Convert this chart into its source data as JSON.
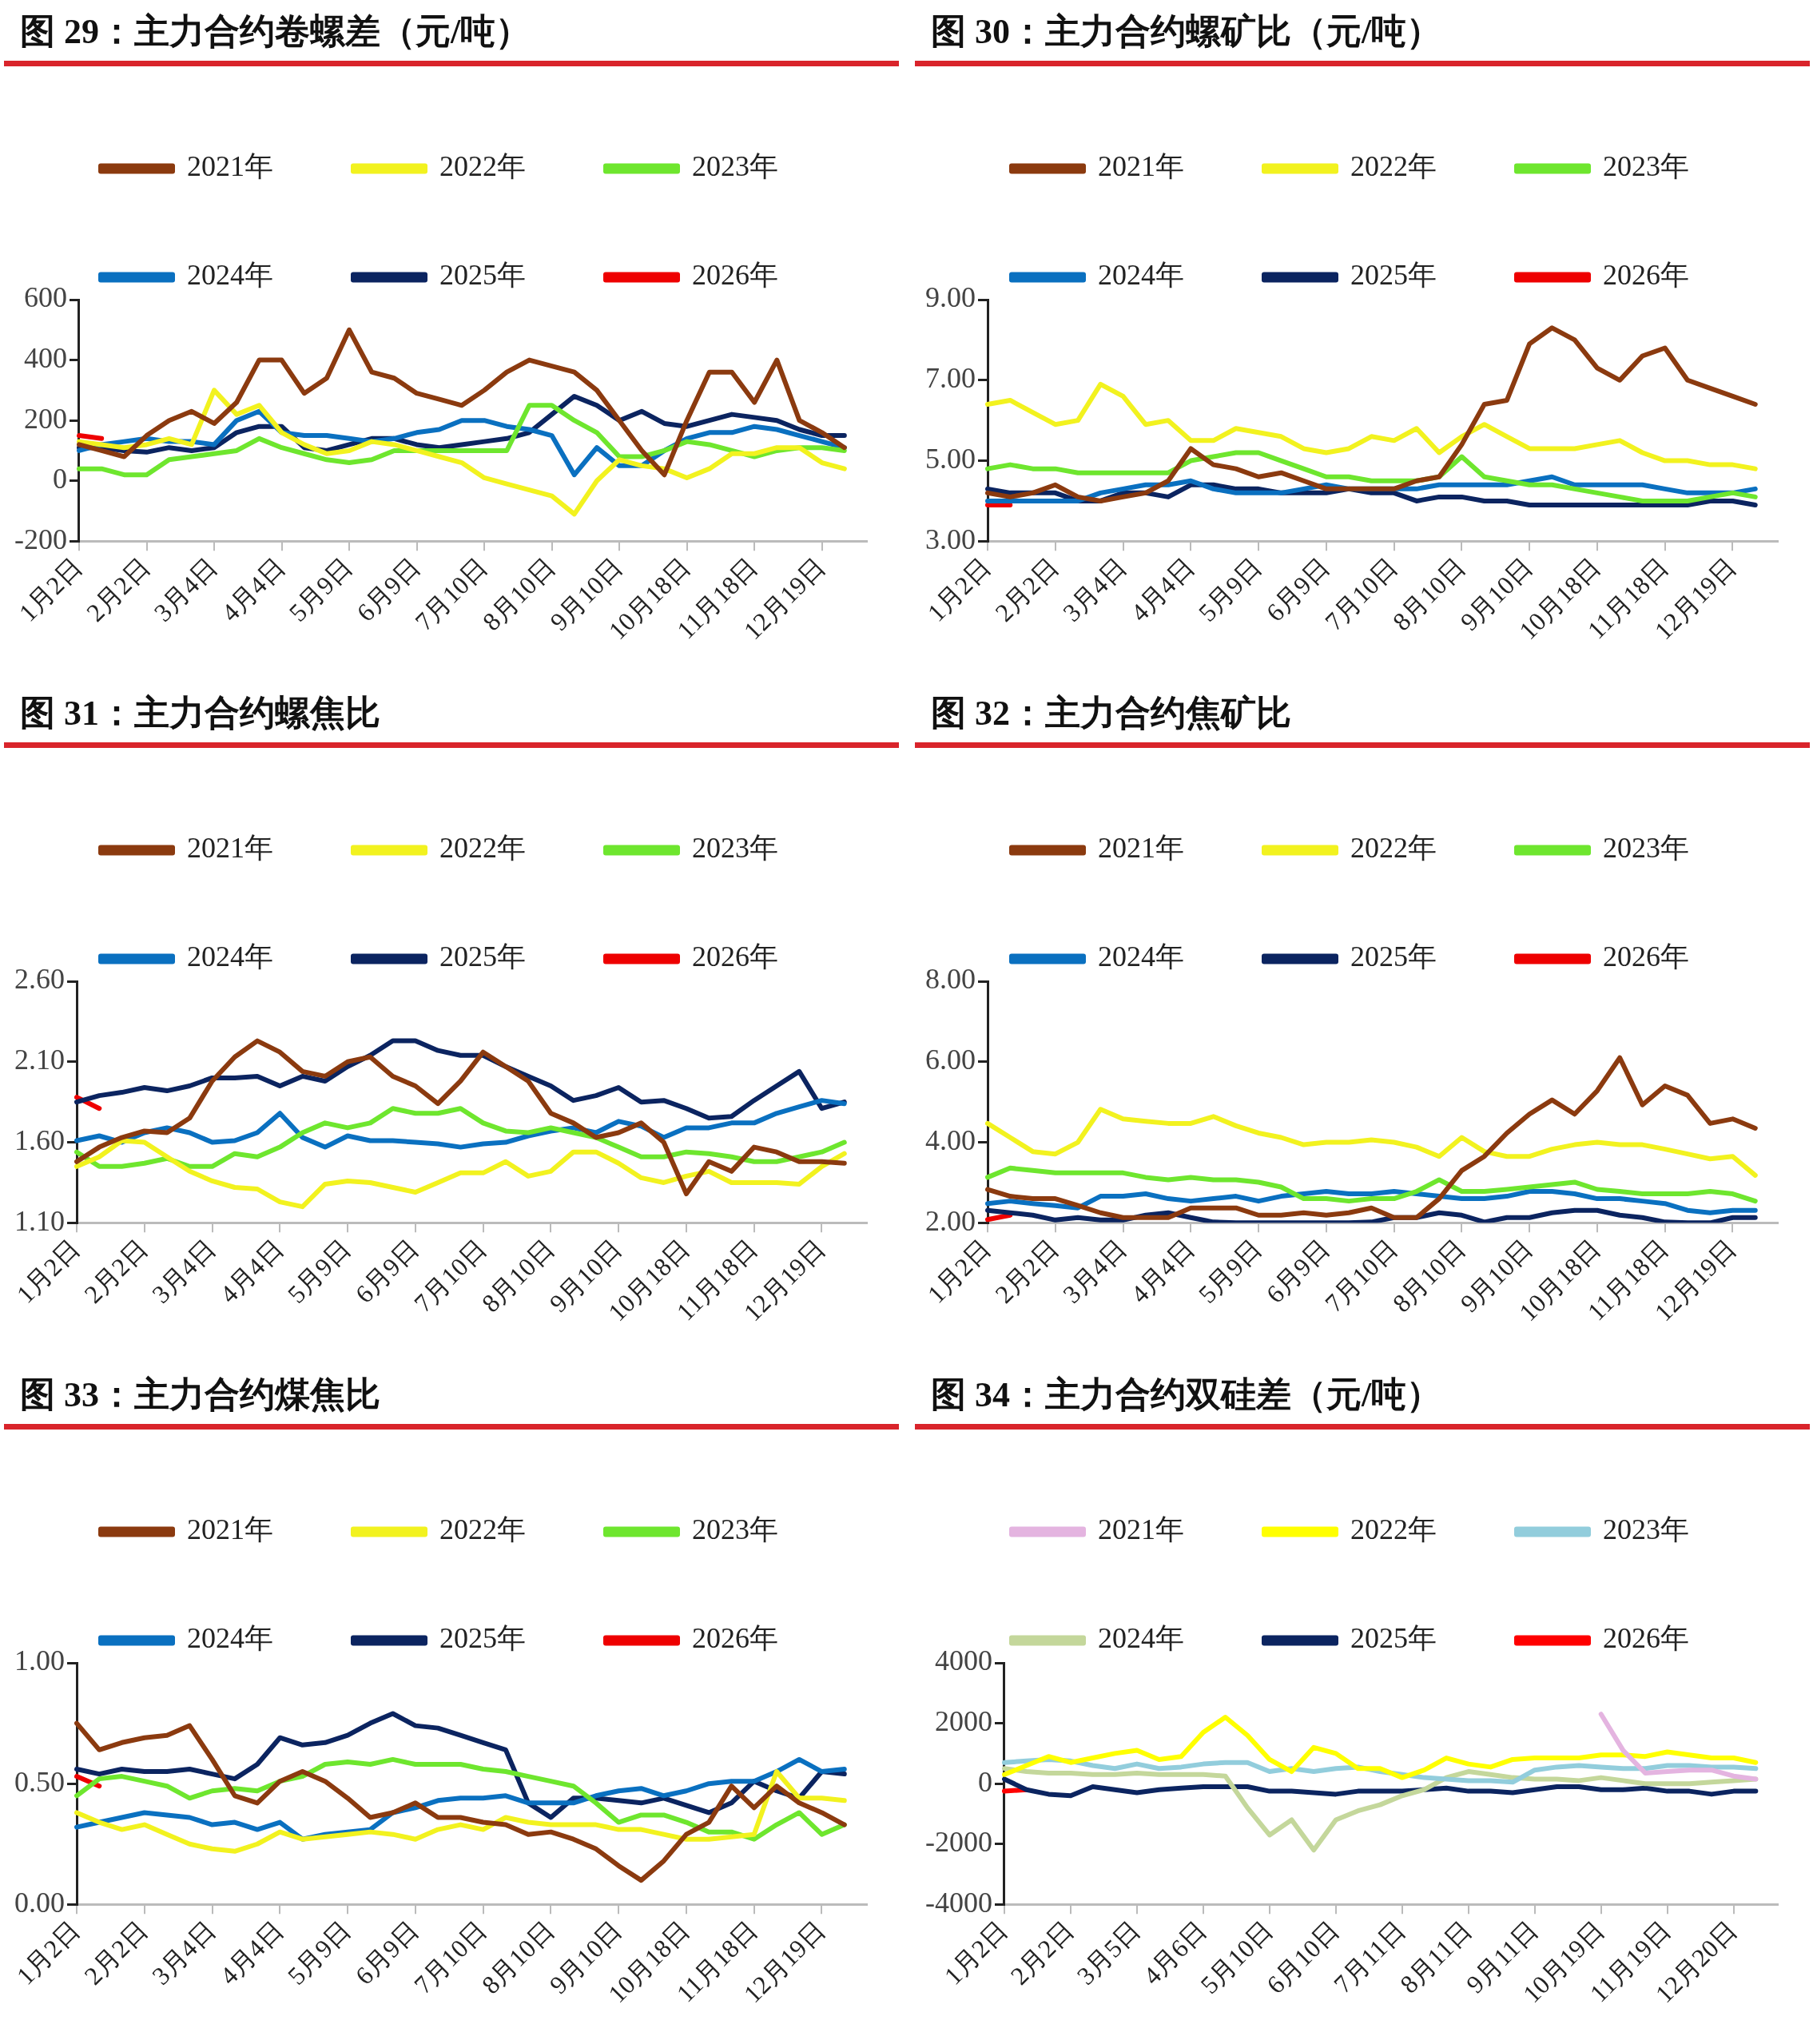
{
  "chart_data": [
    {
      "type": "line",
      "title": "图 29：主力合约卷螺差（元/吨）",
      "categories": [
        "1月2日",
        null,
        null,
        "2月2日",
        null,
        null,
        "3月4日",
        null,
        null,
        "4月4日",
        null,
        null,
        "5月9日",
        null,
        null,
        "6月9日",
        null,
        null,
        "7月10日",
        null,
        null,
        "8月10日",
        null,
        null,
        "9月10日",
        null,
        null,
        "10月18日",
        null,
        null,
        "11月18日",
        null,
        null,
        "12月19日",
        null,
        null
      ],
      "series": [
        {
          "name": "2021年",
          "color": "#8b3a0f",
          "values": [
            120,
            100,
            80,
            150,
            200,
            230,
            190,
            260,
            400,
            400,
            290,
            340,
            500,
            360,
            340,
            290,
            270,
            250,
            300,
            360,
            400,
            380,
            360,
            300,
            200,
            100,
            20,
            200,
            360,
            360,
            260,
            400,
            200,
            160,
            110,
            null
          ]
        },
        {
          "name": "2022年",
          "color": "#f2f21f",
          "values": [
            130,
            120,
            110,
            120,
            140,
            120,
            300,
            220,
            250,
            160,
            120,
            90,
            100,
            130,
            120,
            100,
            80,
            60,
            10,
            -10,
            -30,
            -50,
            -110,
            0,
            70,
            50,
            40,
            10,
            40,
            90,
            90,
            110,
            110,
            60,
            40,
            null
          ]
        },
        {
          "name": "2023年",
          "color": "#6ee62e",
          "values": [
            40,
            40,
            20,
            20,
            70,
            80,
            90,
            100,
            140,
            110,
            90,
            70,
            60,
            70,
            100,
            100,
            100,
            100,
            100,
            100,
            250,
            250,
            200,
            160,
            80,
            80,
            100,
            130,
            120,
            100,
            80,
            100,
            110,
            110,
            100,
            null
          ]
        },
        {
          "name": "2024年",
          "color": "#0a70c0",
          "values": [
            100,
            120,
            130,
            140,
            130,
            130,
            120,
            200,
            230,
            160,
            150,
            150,
            140,
            130,
            140,
            160,
            170,
            200,
            200,
            180,
            170,
            150,
            20,
            110,
            50,
            50,
            100,
            140,
            160,
            160,
            180,
            170,
            150,
            130,
            110,
            null
          ]
        },
        {
          "name": "2025年",
          "color": "#0b2460",
          "values": [
            110,
            110,
            100,
            95,
            110,
            100,
            110,
            160,
            180,
            180,
            110,
            100,
            120,
            140,
            140,
            120,
            110,
            120,
            130,
            140,
            160,
            220,
            280,
            250,
            200,
            230,
            190,
            180,
            200,
            220,
            210,
            200,
            170,
            150,
            150,
            null
          ]
        },
        {
          "name": "2026年",
          "color": "#ee0000",
          "values": [
            150,
            140,
            null,
            null,
            null,
            null,
            null,
            null,
            null,
            null,
            null,
            null,
            null,
            null,
            null,
            null,
            null,
            null,
            null,
            null,
            null,
            null,
            null,
            null,
            null,
            null,
            null,
            null,
            null,
            null,
            null,
            null,
            null,
            null,
            null,
            null
          ]
        }
      ],
      "ylim": [
        -200,
        600
      ],
      "yticks": [
        -200,
        0,
        200,
        400,
        600
      ],
      "legend": "top"
    },
    {
      "type": "line",
      "title": "图 30：主力合约螺矿比（元/吨）",
      "categories": [
        "1月2日",
        null,
        null,
        "2月2日",
        null,
        null,
        "3月4日",
        null,
        null,
        "4月4日",
        null,
        null,
        "5月9日",
        null,
        null,
        "6月9日",
        null,
        null,
        "7月10日",
        null,
        null,
        "8月10日",
        null,
        null,
        "9月10日",
        null,
        null,
        "10月18日",
        null,
        null,
        "11月18日",
        null,
        null,
        "12月19日",
        null,
        null
      ],
      "series": [
        {
          "name": "2021年",
          "color": "#8b3a0f",
          "values": [
            4.2,
            4.1,
            4.2,
            4.4,
            4.1,
            4.0,
            4.1,
            4.2,
            4.5,
            5.3,
            4.9,
            4.8,
            4.6,
            4.7,
            4.5,
            4.3,
            4.3,
            4.3,
            4.3,
            4.5,
            4.6,
            5.4,
            6.4,
            6.5,
            7.9,
            8.3,
            8.0,
            7.3,
            7.0,
            7.6,
            7.8,
            7.0,
            6.8,
            6.6,
            6.4,
            null
          ]
        },
        {
          "name": "2022年",
          "color": "#f2f21f",
          "values": [
            6.4,
            6.5,
            6.2,
            5.9,
            6.0,
            6.9,
            6.6,
            5.9,
            6.0,
            5.5,
            5.5,
            5.8,
            5.7,
            5.6,
            5.3,
            5.2,
            5.3,
            5.6,
            5.5,
            5.8,
            5.2,
            5.6,
            5.9,
            5.6,
            5.3,
            5.3,
            5.3,
            5.4,
            5.5,
            5.2,
            5.0,
            5.0,
            4.9,
            4.9,
            4.8,
            null
          ]
        },
        {
          "name": "2023年",
          "color": "#6ee62e",
          "values": [
            4.8,
            4.9,
            4.8,
            4.8,
            4.7,
            4.7,
            4.7,
            4.7,
            4.7,
            5.0,
            5.1,
            5.2,
            5.2,
            5.0,
            4.8,
            4.6,
            4.6,
            4.5,
            4.5,
            4.5,
            4.6,
            5.1,
            4.6,
            4.5,
            4.4,
            4.4,
            4.3,
            4.2,
            4.1,
            4.0,
            4.0,
            4.0,
            4.1,
            4.2,
            4.1,
            null
          ]
        },
        {
          "name": "2024年",
          "color": "#0a70c0",
          "values": [
            4.0,
            4.0,
            4.0,
            4.0,
            4.0,
            4.2,
            4.3,
            4.4,
            4.4,
            4.5,
            4.3,
            4.2,
            4.2,
            4.2,
            4.3,
            4.4,
            4.3,
            4.3,
            4.3,
            4.3,
            4.4,
            4.4,
            4.4,
            4.4,
            4.5,
            4.6,
            4.4,
            4.4,
            4.4,
            4.4,
            4.3,
            4.2,
            4.2,
            4.2,
            4.3,
            null
          ]
        },
        {
          "name": "2025年",
          "color": "#0b2460",
          "values": [
            4.3,
            4.2,
            4.2,
            4.2,
            4.0,
            4.0,
            4.2,
            4.2,
            4.1,
            4.4,
            4.4,
            4.3,
            4.3,
            4.2,
            4.2,
            4.2,
            4.3,
            4.2,
            4.2,
            4.0,
            4.1,
            4.1,
            4.0,
            4.0,
            3.9,
            3.9,
            3.9,
            3.9,
            3.9,
            3.9,
            3.9,
            3.9,
            4.0,
            4.0,
            3.9,
            null
          ]
        },
        {
          "name": "2026年",
          "color": "#ee0000",
          "values": [
            3.9,
            3.9,
            null,
            null,
            null,
            null,
            null,
            null,
            null,
            null,
            null,
            null,
            null,
            null,
            null,
            null,
            null,
            null,
            null,
            null,
            null,
            null,
            null,
            null,
            null,
            null,
            null,
            null,
            null,
            null,
            null,
            null,
            null,
            null,
            null,
            null
          ]
        }
      ],
      "ylim": [
        3,
        9
      ],
      "yticks": [
        {
          "value": 3,
          "label": "3.00"
        },
        {
          "value": 5,
          "label": "5.00"
        },
        {
          "value": 7,
          "label": "7.00"
        },
        {
          "value": 9,
          "label": "9.00"
        }
      ],
      "legend": "top"
    },
    {
      "type": "line",
      "title": "图 31：主力合约螺焦比",
      "categories": [
        "1月2日",
        null,
        null,
        "2月2日",
        null,
        null,
        "3月4日",
        null,
        null,
        "4月4日",
        null,
        null,
        "5月9日",
        null,
        null,
        "6月9日",
        null,
        null,
        "7月10日",
        null,
        null,
        "8月10日",
        null,
        null,
        "9月10日",
        null,
        null,
        "10月18日",
        null,
        null,
        "11月18日",
        null,
        null,
        "12月19日",
        null,
        null
      ],
      "series": [
        {
          "name": "2021年",
          "color": "#8b3a0f",
          "values": [
            1.48,
            1.57,
            1.63,
            1.67,
            1.66,
            1.75,
            1.98,
            2.13,
            2.23,
            2.16,
            2.04,
            2.01,
            2.1,
            2.13,
            2.01,
            1.95,
            1.84,
            1.98,
            2.16,
            2.07,
            1.98,
            1.78,
            1.72,
            1.63,
            1.66,
            1.72,
            1.6,
            1.28,
            1.48,
            1.42,
            1.57,
            1.54,
            1.48,
            1.48,
            1.47,
            null
          ]
        },
        {
          "name": "2022年",
          "color": "#f2f21f",
          "values": [
            1.45,
            1.51,
            1.61,
            1.6,
            1.51,
            1.42,
            1.36,
            1.32,
            1.31,
            1.23,
            1.2,
            1.34,
            1.36,
            1.35,
            1.32,
            1.29,
            1.35,
            1.41,
            1.41,
            1.48,
            1.39,
            1.42,
            1.54,
            1.54,
            1.47,
            1.38,
            1.35,
            1.39,
            1.42,
            1.35,
            1.35,
            1.35,
            1.34,
            1.45,
            1.53,
            null
          ]
        },
        {
          "name": "2023年",
          "color": "#6ee62e",
          "values": [
            1.54,
            1.45,
            1.45,
            1.47,
            1.5,
            1.45,
            1.45,
            1.53,
            1.51,
            1.57,
            1.66,
            1.72,
            1.69,
            1.72,
            1.81,
            1.78,
            1.78,
            1.81,
            1.72,
            1.67,
            1.66,
            1.69,
            1.66,
            1.63,
            1.57,
            1.51,
            1.51,
            1.54,
            1.53,
            1.51,
            1.48,
            1.48,
            1.51,
            1.54,
            1.6,
            null
          ]
        },
        {
          "name": "2024年",
          "color": "#0a70c0",
          "values": [
            1.61,
            1.64,
            1.6,
            1.66,
            1.69,
            1.66,
            1.6,
            1.61,
            1.66,
            1.78,
            1.63,
            1.57,
            1.64,
            1.61,
            1.61,
            1.6,
            1.59,
            1.57,
            1.59,
            1.6,
            1.64,
            1.67,
            1.69,
            1.66,
            1.73,
            1.7,
            1.63,
            1.69,
            1.69,
            1.72,
            1.72,
            1.78,
            1.82,
            1.86,
            1.84,
            null
          ]
        },
        {
          "name": "2025年",
          "color": "#0b2460",
          "values": [
            1.85,
            1.89,
            1.91,
            1.94,
            1.92,
            1.95,
            2.0,
            2.0,
            2.01,
            1.95,
            2.01,
            1.98,
            2.07,
            2.14,
            2.23,
            2.23,
            2.17,
            2.14,
            2.14,
            2.07,
            2.01,
            1.95,
            1.86,
            1.89,
            1.94,
            1.85,
            1.86,
            1.81,
            1.75,
            1.76,
            1.86,
            1.95,
            2.04,
            1.81,
            1.85,
            null
          ]
        },
        {
          "name": "2026年",
          "color": "#ee0000",
          "values": [
            1.88,
            1.81,
            null,
            null,
            null,
            null,
            null,
            null,
            null,
            null,
            null,
            null,
            null,
            null,
            null,
            null,
            null,
            null,
            null,
            null,
            null,
            null,
            null,
            null,
            null,
            null,
            null,
            null,
            null,
            null,
            null,
            null,
            null,
            null,
            null,
            null
          ]
        }
      ],
      "ylim": [
        1.1,
        2.6
      ],
      "yticks": [
        {
          "value": 1.1,
          "label": "1.10"
        },
        {
          "value": 1.6,
          "label": "1.60"
        },
        {
          "value": 2.1,
          "label": "2.10"
        },
        {
          "value": 2.6,
          "label": "2.60"
        }
      ],
      "legend": "top"
    },
    {
      "type": "line",
      "title": "图 32：主力合约焦矿比",
      "categories": [
        "1月2日",
        null,
        null,
        "2月2日",
        null,
        null,
        "3月4日",
        null,
        null,
        "4月4日",
        null,
        null,
        "5月9日",
        null,
        null,
        "6月9日",
        null,
        null,
        "7月10日",
        null,
        null,
        "8月10日",
        null,
        null,
        "9月10日",
        null,
        null,
        "10月18日",
        null,
        null,
        "11月18日",
        null,
        null,
        "12月19日",
        null,
        null
      ],
      "series": [
        {
          "name": "2021年",
          "color": "#8b3a0f",
          "values": [
            2.83,
            2.66,
            2.6,
            2.6,
            2.43,
            2.25,
            2.13,
            2.13,
            2.13,
            2.37,
            2.37,
            2.37,
            2.19,
            2.19,
            2.25,
            2.19,
            2.25,
            2.37,
            2.13,
            2.13,
            2.6,
            3.3,
            3.65,
            4.23,
            4.7,
            5.05,
            4.7,
            5.28,
            6.1,
            4.93,
            5.4,
            5.17,
            4.47,
            4.58,
            4.35,
            null
          ]
        },
        {
          "name": "2022年",
          "color": "#f2f21f",
          "values": [
            4.47,
            4.12,
            3.77,
            3.71,
            4.0,
            4.82,
            4.58,
            4.52,
            4.47,
            4.47,
            4.64,
            4.41,
            4.23,
            4.12,
            3.94,
            4.0,
            4.0,
            4.06,
            4.0,
            3.88,
            3.65,
            4.12,
            3.77,
            3.65,
            3.65,
            3.83,
            3.94,
            4.0,
            3.94,
            3.94,
            3.83,
            3.71,
            3.59,
            3.65,
            3.18,
            null
          ]
        },
        {
          "name": "2023年",
          "color": "#6ee62e",
          "values": [
            3.13,
            3.36,
            3.3,
            3.24,
            3.24,
            3.24,
            3.24,
            3.13,
            3.07,
            3.13,
            3.07,
            3.07,
            3.01,
            2.89,
            2.6,
            2.6,
            2.54,
            2.6,
            2.6,
            2.78,
            3.07,
            2.78,
            2.78,
            2.83,
            2.89,
            2.95,
            3.01,
            2.83,
            2.78,
            2.72,
            2.72,
            2.72,
            2.78,
            2.72,
            2.54,
            null
          ]
        },
        {
          "name": "2024年",
          "color": "#0a70c0",
          "values": [
            2.48,
            2.54,
            2.48,
            2.43,
            2.37,
            2.66,
            2.66,
            2.72,
            2.6,
            2.54,
            2.6,
            2.66,
            2.54,
            2.66,
            2.72,
            2.78,
            2.72,
            2.72,
            2.78,
            2.72,
            2.66,
            2.6,
            2.6,
            2.66,
            2.78,
            2.78,
            2.72,
            2.6,
            2.6,
            2.54,
            2.48,
            2.31,
            2.25,
            2.31,
            2.31,
            null
          ]
        },
        {
          "name": "2025年",
          "color": "#0b2460",
          "values": [
            2.31,
            2.25,
            2.19,
            2.07,
            2.13,
            2.07,
            2.07,
            2.19,
            2.25,
            2.13,
            2.02,
            2.0,
            2.0,
            2.0,
            2.0,
            2.0,
            2.0,
            2.02,
            2.13,
            2.13,
            2.25,
            2.19,
            2.02,
            2.13,
            2.13,
            2.25,
            2.31,
            2.31,
            2.19,
            2.13,
            2.02,
            2.0,
            2.0,
            2.13,
            2.13,
            null
          ]
        },
        {
          "name": "2026年",
          "color": "#ee0000",
          "values": [
            2.08,
            2.19,
            null,
            null,
            null,
            null,
            null,
            null,
            null,
            null,
            null,
            null,
            null,
            null,
            null,
            null,
            null,
            null,
            null,
            null,
            null,
            null,
            null,
            null,
            null,
            null,
            null,
            null,
            null,
            null,
            null,
            null,
            null,
            null,
            null,
            null
          ]
        }
      ],
      "ylim": [
        2,
        8
      ],
      "yticks": [
        {
          "value": 2,
          "label": "2.00"
        },
        {
          "value": 4,
          "label": "4.00"
        },
        {
          "value": 6,
          "label": "6.00"
        },
        {
          "value": 8,
          "label": "8.00"
        }
      ],
      "legend": "top"
    },
    {
      "type": "line",
      "title": "图 33：主力合约煤焦比",
      "categories": [
        "1月2日",
        null,
        null,
        "2月2日",
        null,
        null,
        "3月4日",
        null,
        null,
        "4月4日",
        null,
        null,
        "5月9日",
        null,
        null,
        "6月9日",
        null,
        null,
        "7月10日",
        null,
        null,
        "8月10日",
        null,
        null,
        "9月10日",
        null,
        null,
        "10月18日",
        null,
        null,
        "11月18日",
        null,
        null,
        "12月19日",
        null,
        null
      ],
      "series": [
        {
          "name": "2021年",
          "color": "#8b3a0f",
          "values": [
            0.75,
            0.64,
            0.67,
            0.69,
            0.7,
            0.74,
            0.6,
            0.45,
            0.42,
            0.51,
            0.55,
            0.51,
            0.44,
            0.36,
            0.38,
            0.42,
            0.36,
            0.36,
            0.34,
            0.33,
            0.29,
            0.3,
            0.27,
            0.23,
            0.16,
            0.1,
            0.18,
            0.29,
            0.34,
            0.49,
            0.4,
            0.49,
            0.42,
            0.38,
            0.33,
            null
          ]
        },
        {
          "name": "2022年",
          "color": "#f2f21f",
          "values": [
            0.38,
            0.34,
            0.31,
            0.33,
            0.29,
            0.25,
            0.23,
            0.22,
            0.25,
            0.3,
            0.27,
            0.28,
            0.29,
            0.3,
            0.29,
            0.27,
            0.31,
            0.33,
            0.31,
            0.36,
            0.34,
            0.33,
            0.33,
            0.33,
            0.31,
            0.31,
            0.29,
            0.27,
            0.27,
            0.28,
            0.29,
            0.55,
            0.44,
            0.44,
            0.43,
            null
          ]
        },
        {
          "name": "2023年",
          "color": "#6ee62e",
          "values": [
            0.45,
            0.52,
            0.53,
            0.51,
            0.49,
            0.44,
            0.47,
            0.48,
            0.47,
            0.51,
            0.53,
            0.58,
            0.59,
            0.58,
            0.6,
            0.58,
            0.58,
            0.58,
            0.56,
            0.55,
            0.53,
            0.51,
            0.49,
            0.42,
            0.34,
            0.37,
            0.37,
            0.34,
            0.3,
            0.3,
            0.27,
            0.33,
            0.38,
            0.29,
            0.33,
            null
          ]
        },
        {
          "name": "2024年",
          "color": "#0a70c0",
          "values": [
            0.32,
            0.34,
            0.36,
            0.38,
            0.37,
            0.36,
            0.33,
            0.34,
            0.31,
            0.34,
            0.27,
            0.29,
            0.3,
            0.31,
            0.38,
            0.4,
            0.43,
            0.44,
            0.44,
            0.45,
            0.42,
            0.42,
            0.42,
            0.45,
            0.47,
            0.48,
            0.45,
            0.47,
            0.5,
            0.51,
            0.51,
            0.55,
            0.6,
            0.55,
            0.56,
            null
          ]
        },
        {
          "name": "2025年",
          "color": "#0b2460",
          "values": [
            0.56,
            0.54,
            0.56,
            0.55,
            0.55,
            0.56,
            0.54,
            0.52,
            0.58,
            0.69,
            0.66,
            0.67,
            0.7,
            0.75,
            0.79,
            0.74,
            0.73,
            0.7,
            0.67,
            0.64,
            0.42,
            0.36,
            0.44,
            0.44,
            0.43,
            0.42,
            0.44,
            0.41,
            0.38,
            0.42,
            0.51,
            0.47,
            0.44,
            0.55,
            0.54,
            null
          ]
        },
        {
          "name": "2026年",
          "color": "#ee0000",
          "values": [
            0.53,
            0.49,
            null,
            null,
            null,
            null,
            null,
            null,
            null,
            null,
            null,
            null,
            null,
            null,
            null,
            null,
            null,
            null,
            null,
            null,
            null,
            null,
            null,
            null,
            null,
            null,
            null,
            null,
            null,
            null,
            null,
            null,
            null,
            null,
            null,
            null
          ]
        }
      ],
      "ylim": [
        0,
        1
      ],
      "yticks": [
        {
          "value": 0,
          "label": "0.00"
        },
        {
          "value": 0.5,
          "label": "0.50"
        },
        {
          "value": 1,
          "label": "1.00"
        }
      ],
      "legend": "top"
    },
    {
      "type": "line",
      "title": "图 34：主力合约双硅差（元/吨）",
      "categories": [
        "1月2日",
        null,
        null,
        "2月2日",
        null,
        null,
        "3月5日",
        null,
        null,
        "4月6日",
        null,
        null,
        "5月10日",
        null,
        null,
        "6月10日",
        null,
        null,
        "7月11日",
        null,
        null,
        "8月11日",
        null,
        null,
        "9月11日",
        null,
        null,
        "10月19日",
        null,
        null,
        "11月19日",
        null,
        null,
        "12月20日",
        null,
        null
      ],
      "series": [
        {
          "name": "2021年",
          "color": "#e4b4e0",
          "values": [
            null,
            null,
            null,
            null,
            null,
            null,
            null,
            null,
            null,
            null,
            null,
            null,
            null,
            null,
            null,
            null,
            null,
            null,
            null,
            null,
            null,
            null,
            null,
            null,
            null,
            null,
            null,
            2300,
            1100,
            350,
            400,
            450,
            450,
            250,
            150,
            null
          ]
        },
        {
          "name": "2022年",
          "color": "#ffff00",
          "values": [
            300,
            600,
            900,
            700,
            850,
            1000,
            1100,
            800,
            900,
            1700,
            2200,
            1600,
            800,
            400,
            1200,
            1000,
            500,
            500,
            200,
            450,
            850,
            650,
            550,
            800,
            850,
            850,
            850,
            950,
            950,
            900,
            1050,
            950,
            850,
            850,
            700,
            null
          ]
        },
        {
          "name": "2023年",
          "color": "#92cddc",
          "values": [
            700,
            750,
            800,
            750,
            600,
            500,
            650,
            500,
            550,
            650,
            700,
            700,
            400,
            500,
            400,
            500,
            550,
            400,
            300,
            200,
            150,
            100,
            100,
            50,
            450,
            550,
            600,
            550,
            500,
            500,
            600,
            600,
            550,
            550,
            500,
            null
          ]
        },
        {
          "name": "2024年",
          "color": "#c4d79b",
          "values": [
            500,
            400,
            350,
            350,
            300,
            300,
            350,
            300,
            300,
            300,
            250,
            -800,
            -1700,
            -1200,
            -2200,
            -1200,
            -900,
            -700,
            -400,
            -200,
            200,
            400,
            300,
            200,
            150,
            150,
            100,
            200,
            100,
            0,
            0,
            0,
            50,
            100,
            150,
            null
          ]
        },
        {
          "name": "2025年",
          "color": "#0b2460",
          "values": [
            150,
            -200,
            -350,
            -400,
            -100,
            -200,
            -300,
            -200,
            -150,
            -100,
            -100,
            -100,
            -250,
            -250,
            -300,
            -350,
            -250,
            -250,
            -250,
            -200,
            -150,
            -250,
            -250,
            -300,
            -200,
            -100,
            -100,
            -200,
            -200,
            -150,
            -250,
            -250,
            -350,
            -250,
            -250,
            null
          ]
        },
        {
          "name": "2026年",
          "color": "#ff0000",
          "values": [
            -250,
            -200,
            null,
            null,
            null,
            null,
            null,
            null,
            null,
            null,
            null,
            null,
            null,
            null,
            null,
            null,
            null,
            null,
            null,
            null,
            null,
            null,
            null,
            null,
            null,
            null,
            null,
            null,
            null,
            null,
            null,
            null,
            null,
            null,
            null,
            null
          ]
        }
      ],
      "ylim": [
        -4000,
        4000
      ],
      "yticks": [
        -4000,
        -2000,
        0,
        2000,
        4000
      ],
      "legend": "top"
    }
  ]
}
